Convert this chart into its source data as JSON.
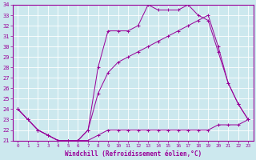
{
  "xlabel": "Windchill (Refroidissement éolien,°C)",
  "background_color": "#cce8ee",
  "line_color": "#990099",
  "xlim": [
    -0.5,
    23.5
  ],
  "ylim": [
    21,
    34
  ],
  "yticks": [
    21,
    22,
    23,
    24,
    25,
    26,
    27,
    28,
    29,
    30,
    31,
    32,
    33,
    34
  ],
  "xticks": [
    0,
    1,
    2,
    3,
    4,
    5,
    6,
    7,
    8,
    9,
    10,
    11,
    12,
    13,
    14,
    15,
    16,
    17,
    18,
    19,
    20,
    21,
    22,
    23
  ],
  "series": [
    {
      "x": [
        0,
        1,
        2,
        3,
        4,
        5,
        6,
        7,
        8,
        9,
        10,
        11,
        12,
        13,
        14,
        15,
        16,
        17,
        18,
        19,
        20,
        21,
        22,
        23
      ],
      "y": [
        24,
        23,
        22,
        21.5,
        21,
        21,
        21,
        21,
        21.5,
        22,
        22,
        22,
        22,
        22,
        22,
        22,
        22,
        22,
        22,
        22,
        22.5,
        22.5,
        22.5,
        23
      ]
    },
    {
      "x": [
        0,
        1,
        2,
        3,
        4,
        5,
        6,
        7,
        8,
        9,
        10,
        11,
        12,
        13,
        14,
        15,
        16,
        17,
        18,
        19,
        20,
        21,
        22,
        23
      ],
      "y": [
        24,
        23,
        22,
        21.5,
        21,
        21,
        21,
        22,
        25.5,
        27.5,
        28.5,
        29,
        29.5,
        30,
        30.5,
        31,
        31.5,
        32,
        32.5,
        33,
        30,
        26.5,
        24.5,
        23
      ]
    },
    {
      "x": [
        0,
        1,
        2,
        3,
        4,
        5,
        6,
        7,
        8,
        9,
        10,
        11,
        12,
        13,
        14,
        15,
        16,
        17,
        18,
        19,
        20,
        21,
        22,
        23
      ],
      "y": [
        24,
        23,
        22,
        21.5,
        21,
        21,
        21,
        22,
        28,
        31.5,
        31.5,
        31.5,
        32,
        34,
        33.5,
        33.5,
        33.5,
        34,
        33,
        32.5,
        29.5,
        26.5,
        24.5,
        23
      ]
    }
  ]
}
